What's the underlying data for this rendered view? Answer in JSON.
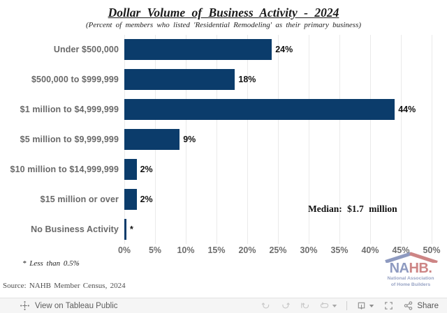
{
  "header": {
    "title": "Dollar Volume of Business Activity - 2024",
    "subtitle": "(Percent of members who listed 'Residential Remodeling' as their primary business)"
  },
  "chart_data": {
    "type": "bar",
    "orientation": "horizontal",
    "categories": [
      "Under $500,000",
      "$500,000 to $999,999",
      "$1 million to $4,999,999",
      "$5 million to $9,999,999",
      "$10 million to $14,999,999",
      "$15 million or over",
      "No Business Activity"
    ],
    "values": [
      24,
      18,
      44,
      9,
      2,
      2,
      0.3
    ],
    "value_labels": [
      "24%",
      "18%",
      "44%",
      "9%",
      "2%",
      "2%",
      "*"
    ],
    "xlim": [
      0,
      50
    ],
    "xticks": [
      0,
      5,
      10,
      15,
      20,
      25,
      30,
      35,
      40,
      45,
      50
    ],
    "xtick_labels": [
      "0%",
      "5%",
      "10%",
      "15%",
      "20%",
      "25%",
      "30%",
      "35%",
      "40%",
      "45%",
      "50%"
    ],
    "grid": "vertical",
    "legend": "none",
    "bar_color": "#0b3c6b",
    "annotation": "Median: $1.7 million"
  },
  "notes": {
    "footnote": "* Less than 0.5%",
    "source": "Source: NAHB Member Census, 2024"
  },
  "logo": {
    "text_na": "NA",
    "text_hb": "HB.",
    "tagline_line1": "National Association",
    "tagline_line2": "of Home Builders",
    "color_blue": "#8e9ac0",
    "color_red": "#cd8585"
  },
  "footer": {
    "view_on": "View on Tableau Public",
    "share_label": "Share",
    "icons": [
      "tableau-logo",
      "undo",
      "redo",
      "replay",
      "refresh",
      "caret-down",
      "download",
      "caret-down",
      "fullscreen",
      "share"
    ]
  }
}
